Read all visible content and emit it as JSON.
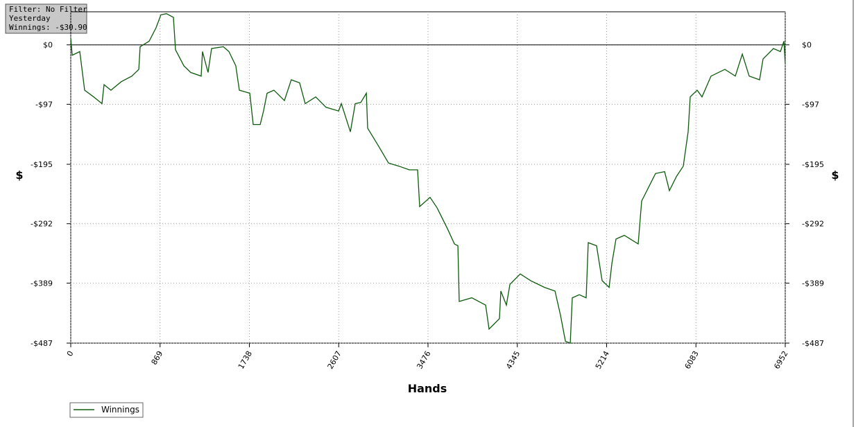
{
  "chart_data": {
    "type": "line",
    "info": [
      "Filter: No Filter",
      "Yesterday",
      "Winnings: -$30.90"
    ],
    "x_label": "Hands",
    "y_label": "$",
    "xlim": [
      0,
      6952
    ],
    "xticks": [
      0,
      869,
      1738,
      2607,
      3476,
      4345,
      5214,
      6083,
      6952
    ],
    "ylim": [
      -487,
      54
    ],
    "yticks": [
      {
        "value": 0,
        "label": "$0"
      },
      {
        "value": -97,
        "label": "-$97"
      },
      {
        "value": -195,
        "label": "-$195"
      },
      {
        "value": -292,
        "label": "-$292"
      },
      {
        "value": -389,
        "label": "-$389"
      },
      {
        "value": -487,
        "label": "-$487"
      }
    ],
    "grid": true,
    "x": [
      0,
      14,
      88,
      135,
      223,
      304,
      324,
      391,
      493,
      594,
      662,
      675,
      763,
      830,
      877,
      931,
      999,
      1019,
      1100,
      1167,
      1269,
      1282,
      1336,
      1370,
      1485,
      1539,
      1606,
      1640,
      1742,
      1775,
      1843,
      1876,
      1910,
      1977,
      2079,
      2146,
      2227,
      2281,
      2383,
      2484,
      2606,
      2633,
      2721,
      2768,
      2822,
      2876,
      2889,
      2990,
      3092,
      3193,
      3294,
      3375,
      3395,
      3496,
      3564,
      3665,
      3733,
      3767,
      3780,
      3902,
      4037,
      4070,
      4171,
      4185,
      4239,
      4273,
      4374,
      4475,
      4610,
      4712,
      4766,
      4813,
      4860,
      4880,
      4948,
      5015,
      5035,
      5116,
      5170,
      5238,
      5265,
      5305,
      5386,
      5521,
      5555,
      5690,
      5778,
      5825,
      5893,
      5960,
      6007,
      6027,
      6095,
      6142,
      6230,
      6365,
      6466,
      6534,
      6601,
      6702,
      6736,
      6837,
      6905,
      6939,
      6952
    ],
    "series": [
      {
        "name": "Winnings",
        "color": "#0b5a0b",
        "values": [
          11,
          -17,
          -11,
          -74,
          -85,
          -96,
          -65,
          -74,
          -60,
          -51,
          -40,
          -3,
          6,
          28,
          49,
          51,
          45,
          -8,
          -34,
          -45,
          -51,
          -11,
          -45,
          -6,
          -3,
          -11,
          -34,
          -74,
          -79,
          -130,
          -130,
          -108,
          -79,
          -74,
          -91,
          -57,
          -62,
          -96,
          -85,
          -102,
          -108,
          -96,
          -142,
          -96,
          -94,
          -79,
          -136,
          -164,
          -193,
          -198,
          -204,
          -204,
          -264,
          -249,
          -266,
          -300,
          -325,
          -328,
          -419,
          -413,
          -425,
          -464,
          -447,
          -402,
          -425,
          -391,
          -374,
          -385,
          -396,
          -402,
          -442,
          -484,
          -487,
          -413,
          -408,
          -413,
          -323,
          -328,
          -385,
          -396,
          -357,
          -317,
          -311,
          -325,
          -255,
          -210,
          -207,
          -238,
          -215,
          -198,
          -142,
          -85,
          -74,
          -85,
          -51,
          -40,
          -51,
          -15,
          -51,
          -57,
          -23,
          -6,
          -11,
          6,
          -31
        ]
      }
    ]
  }
}
